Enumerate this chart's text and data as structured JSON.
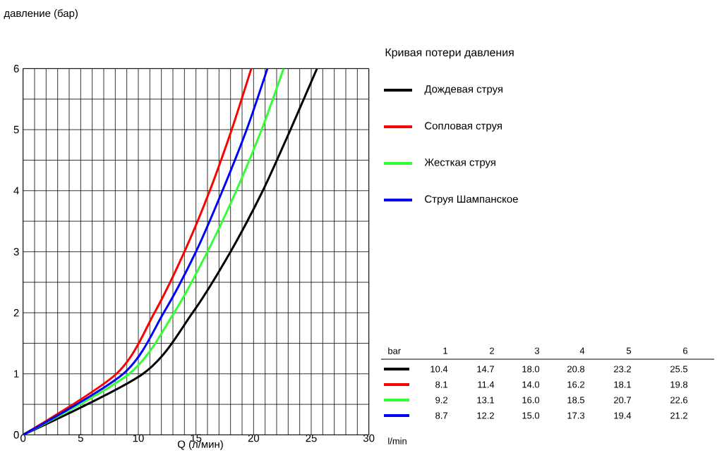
{
  "chart_data": {
    "type": "line",
    "ylabel": "давление (бар)",
    "xlabel": "Q (л/мин)",
    "legend_title": "Кривая потери давления",
    "legend": "right",
    "grid": true,
    "xlim": [
      0,
      30
    ],
    "xticks": [
      0,
      5,
      10,
      15,
      20,
      25,
      30
    ],
    "ylim": [
      0,
      6
    ],
    "yticks": [
      0,
      1,
      2,
      3,
      4,
      5,
      6
    ],
    "annotations": [
      "bar",
      "1",
      "2",
      "3",
      "4",
      "5",
      "6",
      "10.4",
      "14.7",
      "18.0",
      "20.8",
      "23.2",
      "25.5",
      "8.1",
      "11.4",
      "14.0",
      "16.2",
      "18.1",
      "19.8",
      "9.2",
      "13.1",
      "16.0",
      "18.5",
      "20.7",
      "22.6",
      "8.7",
      "12.2",
      "15.0",
      "17.3",
      "19.4",
      "21.2",
      "l/min"
    ],
    "series": [
      {
        "name": "Дождевая струя",
        "color": "#000000",
        "x": [
          0,
          10.4,
          14.7,
          18.0,
          20.8,
          23.2,
          25.5
        ],
        "values": [
          0,
          1,
          2,
          3,
          4,
          5,
          6
        ]
      },
      {
        "name": "Сопловая струя",
        "color": "#ff0000",
        "x": [
          0,
          8.1,
          11.4,
          14.0,
          16.2,
          18.1,
          19.8
        ],
        "values": [
          0,
          1,
          2,
          3,
          4,
          5,
          6
        ]
      },
      {
        "name": "Жесткая струя",
        "color": "#33ff33",
        "x": [
          0,
          9.2,
          13.1,
          16.0,
          18.5,
          20.7,
          22.6
        ],
        "values": [
          0,
          1,
          2,
          3,
          4,
          5,
          6
        ]
      },
      {
        "name": "Струя Шампанское",
        "color": "#0000ff",
        "x": [
          0,
          8.7,
          12.2,
          15.0,
          17.3,
          19.4,
          21.2
        ],
        "values": [
          0,
          1,
          2,
          3,
          4,
          5,
          6
        ]
      }
    ]
  }
}
